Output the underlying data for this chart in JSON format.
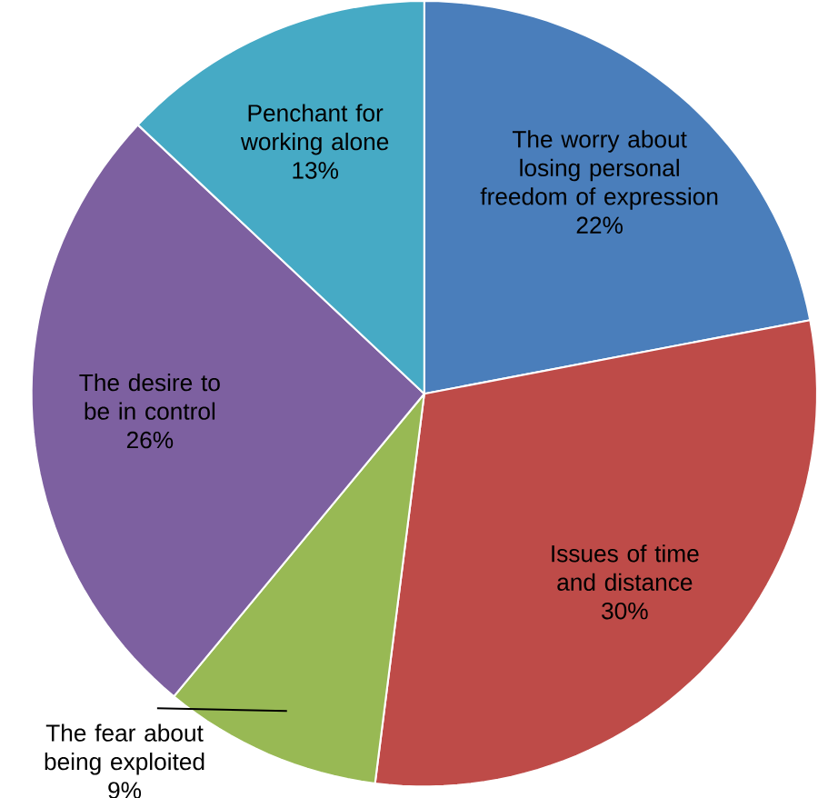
{
  "chart_data": {
    "type": "pie",
    "categories": [
      "The worry about losing personal freedom of expression",
      "Issues of time and distance",
      "The fear about being exploited",
      "The desire to be in control",
      "Penchant for working alone"
    ],
    "values": [
      22,
      30,
      9,
      26,
      13
    ],
    "value_labels": [
      "22%",
      "30%",
      "9%",
      "26%",
      "13%"
    ],
    "colors": [
      "#4a7ebb",
      "#be4b48",
      "#98b954",
      "#7d60a0",
      "#46aac5"
    ]
  }
}
